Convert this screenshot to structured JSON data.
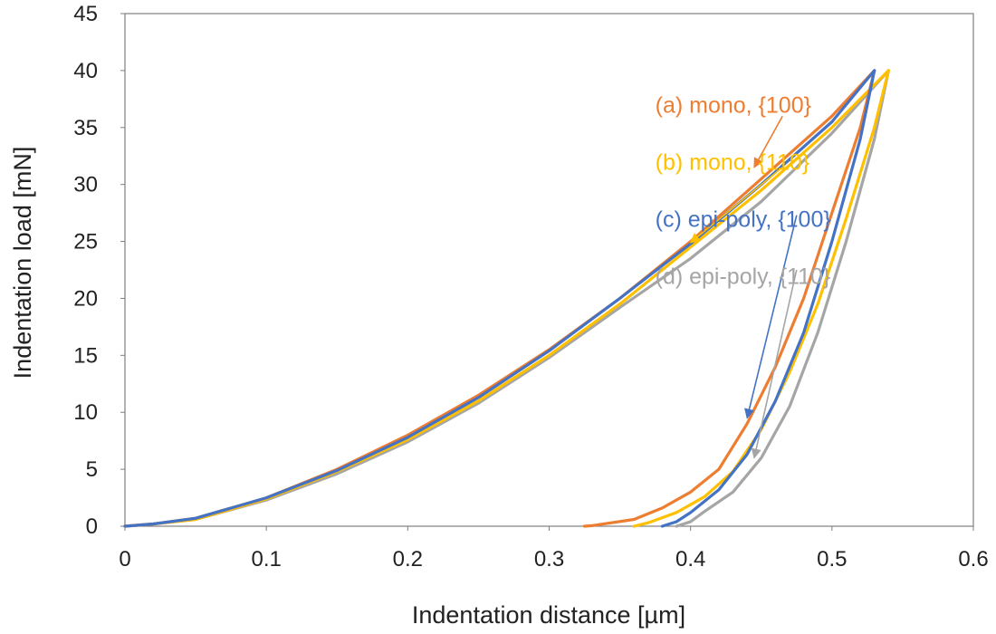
{
  "chart_data": {
    "type": "line",
    "title": "",
    "xlabel": "Indentation distance [µm]",
    "ylabel": "Indentation load [mN]",
    "xlim": [
      0,
      0.6
    ],
    "ylim": [
      0,
      45
    ],
    "xticks": [
      "0",
      "0.1",
      "0.2",
      "0.3",
      "0.4",
      "0.5",
      "0.6"
    ],
    "yticks": [
      "0",
      "5",
      "10",
      "15",
      "20",
      "25",
      "30",
      "35",
      "40",
      "45"
    ],
    "grid": false,
    "legend": "annotated labels with arrows",
    "series": [
      {
        "name": "(a) mono, {100}",
        "color": "#ED7D31",
        "loading": [
          [
            0.0,
            0
          ],
          [
            0.02,
            0.2
          ],
          [
            0.05,
            0.7
          ],
          [
            0.1,
            2.5
          ],
          [
            0.15,
            5.0
          ],
          [
            0.2,
            8.0
          ],
          [
            0.25,
            11.5
          ],
          [
            0.3,
            15.5
          ],
          [
            0.35,
            20.0
          ],
          [
            0.4,
            25.0
          ],
          [
            0.45,
            30.5
          ],
          [
            0.5,
            36.0
          ],
          [
            0.53,
            40.0
          ]
        ],
        "unloading": [
          [
            0.53,
            40.0
          ],
          [
            0.52,
            35.0
          ],
          [
            0.5,
            27.5
          ],
          [
            0.48,
            20.0
          ],
          [
            0.46,
            14.0
          ],
          [
            0.44,
            9.0
          ],
          [
            0.42,
            5.0
          ],
          [
            0.4,
            3.0
          ],
          [
            0.38,
            1.6
          ],
          [
            0.36,
            0.6
          ],
          [
            0.33,
            0.05
          ],
          [
            0.325,
            0
          ]
        ]
      },
      {
        "name": "(b) mono, {110}",
        "color": "#FFC000",
        "loading": [
          [
            0.0,
            0
          ],
          [
            0.02,
            0.2
          ],
          [
            0.05,
            0.6
          ],
          [
            0.1,
            2.4
          ],
          [
            0.15,
            4.8
          ],
          [
            0.2,
            7.6
          ],
          [
            0.25,
            11.0
          ],
          [
            0.3,
            15.0
          ],
          [
            0.35,
            19.5
          ],
          [
            0.4,
            24.5
          ],
          [
            0.45,
            29.5
          ],
          [
            0.5,
            35.0
          ],
          [
            0.54,
            40.0
          ]
        ],
        "unloading": [
          [
            0.54,
            40.0
          ],
          [
            0.53,
            35.0
          ],
          [
            0.51,
            27.0
          ],
          [
            0.49,
            19.5
          ],
          [
            0.47,
            13.5
          ],
          [
            0.45,
            8.5
          ],
          [
            0.43,
            4.8
          ],
          [
            0.41,
            2.6
          ],
          [
            0.39,
            1.2
          ],
          [
            0.37,
            0.3
          ],
          [
            0.36,
            0
          ]
        ]
      },
      {
        "name": "(c) epi-poly, {100}",
        "color": "#4472C4",
        "loading": [
          [
            0.0,
            0
          ],
          [
            0.02,
            0.2
          ],
          [
            0.05,
            0.7
          ],
          [
            0.1,
            2.5
          ],
          [
            0.15,
            4.9
          ],
          [
            0.2,
            7.8
          ],
          [
            0.25,
            11.3
          ],
          [
            0.3,
            15.4
          ],
          [
            0.35,
            20.0
          ],
          [
            0.4,
            24.8
          ],
          [
            0.45,
            30.0
          ],
          [
            0.5,
            35.5
          ],
          [
            0.53,
            40.0
          ]
        ],
        "unloading": [
          [
            0.53,
            40.0
          ],
          [
            0.52,
            34.0
          ],
          [
            0.5,
            25.0
          ],
          [
            0.48,
            17.0
          ],
          [
            0.46,
            11.0
          ],
          [
            0.44,
            6.3
          ],
          [
            0.42,
            3.2
          ],
          [
            0.4,
            1.2
          ],
          [
            0.39,
            0.4
          ],
          [
            0.38,
            0
          ]
        ]
      },
      {
        "name": "(d) epi-poly, {110}",
        "color": "#A5A5A5",
        "loading": [
          [
            0.0,
            0
          ],
          [
            0.02,
            0.2
          ],
          [
            0.05,
            0.6
          ],
          [
            0.1,
            2.3
          ],
          [
            0.15,
            4.6
          ],
          [
            0.2,
            7.4
          ],
          [
            0.25,
            10.8
          ],
          [
            0.3,
            14.8
          ],
          [
            0.35,
            19.2
          ],
          [
            0.4,
            23.5
          ],
          [
            0.45,
            28.5
          ],
          [
            0.5,
            34.5
          ],
          [
            0.54,
            40.0
          ]
        ],
        "unloading": [
          [
            0.54,
            40.0
          ],
          [
            0.53,
            34.0
          ],
          [
            0.51,
            25.0
          ],
          [
            0.49,
            17.0
          ],
          [
            0.47,
            10.5
          ],
          [
            0.45,
            6.0
          ],
          [
            0.43,
            3.0
          ],
          [
            0.41,
            1.3
          ],
          [
            0.4,
            0.4
          ],
          [
            0.39,
            0
          ]
        ]
      }
    ],
    "annotations": [
      {
        "series": 0,
        "label_pos": [
          0.375,
          37.0
        ],
        "arrow_from": [
          0.465,
          36.0
        ],
        "arrow_to": [
          0.445,
          31.5
        ]
      },
      {
        "series": 1,
        "label_pos": [
          0.375,
          32.0
        ],
        "arrow_from": [
          0.465,
          31.5
        ],
        "arrow_to": [
          0.4,
          24.9
        ]
      },
      {
        "series": 2,
        "label_pos": [
          0.375,
          27.0
        ],
        "arrow_from": [
          0.475,
          27.3
        ],
        "arrow_to": [
          0.44,
          9.5
        ]
      },
      {
        "series": 3,
        "label_pos": [
          0.375,
          22.0
        ],
        "arrow_from": [
          0.475,
          22.5
        ],
        "arrow_to": [
          0.445,
          6.0
        ]
      }
    ]
  }
}
